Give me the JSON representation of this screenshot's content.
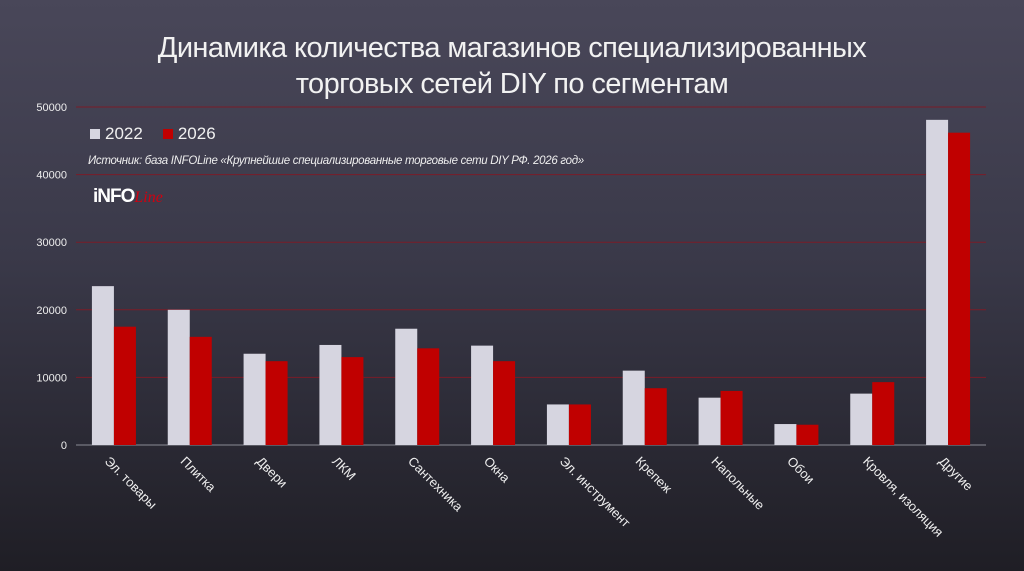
{
  "chart_data": {
    "type": "bar",
    "title": "Динамика количества магазинов специализированных торговых сетей DIY по сегментам",
    "title_lines": [
      "Динамика количества магазинов специализированных",
      "торговых сетей DIY по сегментам"
    ],
    "source": "Источник: база INFOLine «Крупнейшие специализированные торговые сети DIY РФ. 2026 год»",
    "logo": "INFOLine",
    "categories": [
      "Эл. товары",
      "Плитка",
      "Двери",
      "ЛКМ",
      "Сантехника",
      "Окна",
      "Эл. инструмент",
      "Крепеж",
      "Напольные",
      "Обои",
      "Кровля, изоляция",
      "Другие"
    ],
    "series": [
      {
        "name": "2022",
        "color": "#d6d5e0",
        "values": [
          23500,
          20000,
          13500,
          14800,
          17200,
          14700,
          6000,
          11000,
          7000,
          3100,
          7600,
          48100
        ]
      },
      {
        "name": "2026",
        "color": "#c00000",
        "values": [
          17500,
          16000,
          12400,
          13000,
          14300,
          12400,
          6000,
          8400,
          8000,
          3000,
          9300,
          46200
        ]
      }
    ],
    "ylim": [
      0,
      50000
    ],
    "yticks": [
      0,
      10000,
      20000,
      30000,
      40000,
      50000
    ],
    "grid": true,
    "gridline_color": "#7a1c28",
    "legend_position": "top-left",
    "xlabel": "",
    "ylabel": ""
  }
}
